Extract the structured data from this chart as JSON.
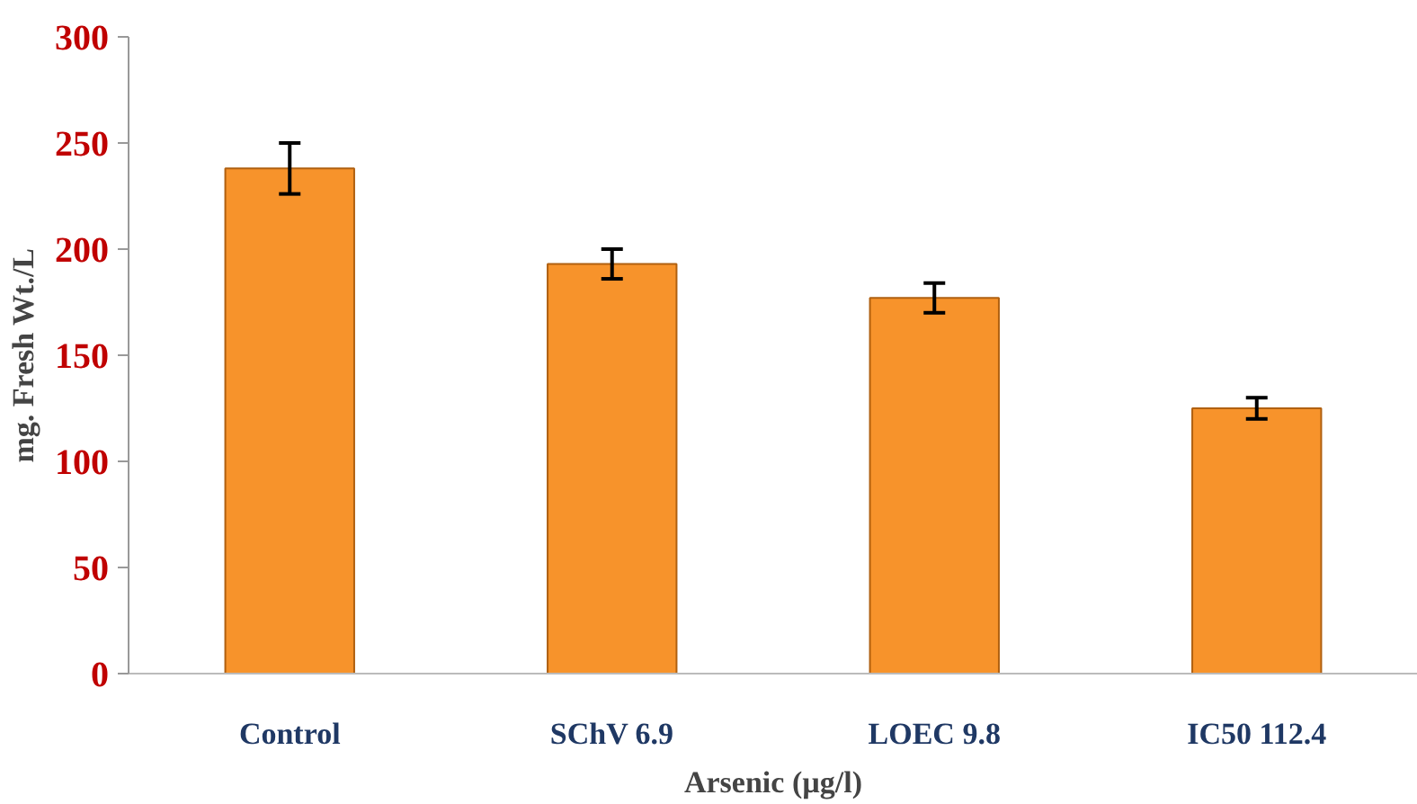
{
  "chart_data": {
    "type": "bar",
    "xlabel": "Arsenic (µg/l)",
    "ylabel": "mg. Fresh Wt./L",
    "categories": [
      "Control",
      "SChV 6.9",
      "LOEC 9.8",
      "IC50 112.4"
    ],
    "values": [
      238,
      193,
      177,
      125
    ],
    "errors": [
      12,
      7,
      7,
      5
    ],
    "color": "#f7932b",
    "ylim": [
      0,
      300
    ],
    "yticks": [
      0,
      50,
      100,
      150,
      200,
      250,
      300
    ],
    "grid": false
  }
}
